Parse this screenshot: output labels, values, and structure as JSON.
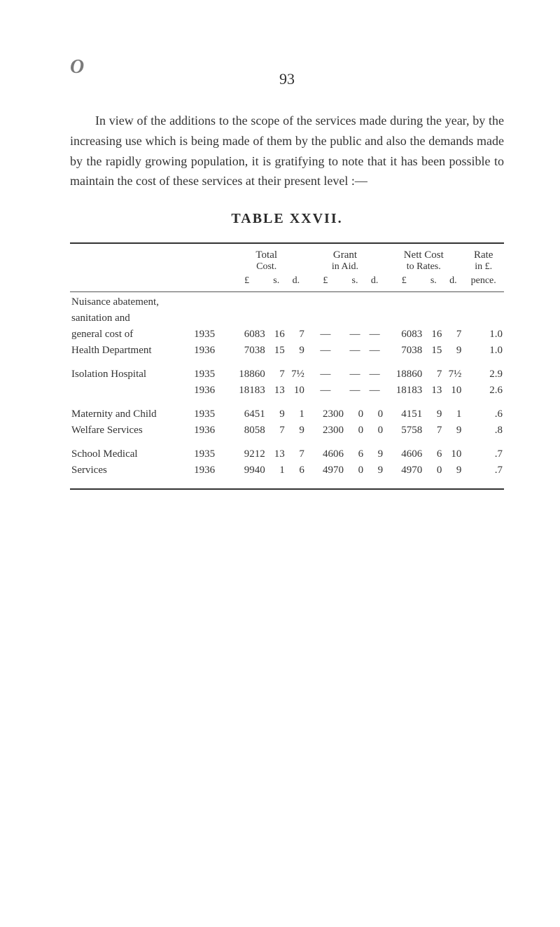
{
  "page_number": "93",
  "binding_mark": "O",
  "paragraph": "In view of the additions to the scope of the services made during the year, by the increasing use which is being made of them by the public and also the demands made by the rapidly growing population, it is gratifying to note that it has been possible to maintain the cost of these services at their present level :—",
  "table_title": "TABLE XXVII.",
  "headers": {
    "total": {
      "label": "Total",
      "sub": "Cost.",
      "p": "£",
      "s": "s.",
      "d": "d."
    },
    "grant": {
      "label": "Grant",
      "sub": "in Aid.",
      "p": "£",
      "s": "s.",
      "d": "d."
    },
    "nett": {
      "label": "Nett Cost",
      "sub": "to Rates.",
      "p": "£",
      "s": "s.",
      "d": "d."
    },
    "rate": {
      "label": "Rate",
      "sub": "in £.",
      "unit": "pence."
    }
  },
  "rows": [
    {
      "label_lines": [
        "Nuisance abatement,",
        "sanitation and",
        "general cost of",
        "Health Department"
      ],
      "data": [
        {
          "year": "1935",
          "tp": "6083",
          "ts": "16",
          "td": "7",
          "gp": "—",
          "gs": "—",
          "gd": "—",
          "np": "6083",
          "ns": "16",
          "nd": "7",
          "rate": "1.0"
        },
        {
          "year": "1936",
          "tp": "7038",
          "ts": "15",
          "td": "9",
          "gp": "—",
          "gs": "—",
          "gd": "—",
          "np": "7038",
          "ns": "15",
          "nd": "9",
          "rate": "1.0"
        }
      ]
    },
    {
      "label_lines": [
        "Isolation Hospital"
      ],
      "data": [
        {
          "year": "1935",
          "tp": "18860",
          "ts": "7",
          "td": "7½",
          "gp": "—",
          "gs": "—",
          "gd": "—",
          "np": "18860",
          "ns": "7",
          "nd": "7½",
          "rate": "2.9"
        },
        {
          "year": "1936",
          "tp": "18183",
          "ts": "13",
          "td": "10",
          "gp": "—",
          "gs": "—",
          "gd": "—",
          "np": "18183",
          "ns": "13",
          "nd": "10",
          "rate": "2.6"
        }
      ]
    },
    {
      "label_lines": [
        "Maternity and Child",
        "Welfare Services"
      ],
      "data": [
        {
          "year": "1935",
          "tp": "6451",
          "ts": "9",
          "td": "1",
          "gp": "2300",
          "gs": "0",
          "gd": "0",
          "np": "4151",
          "ns": "9",
          "nd": "1",
          "rate": ".6"
        },
        {
          "year": "1936",
          "tp": "8058",
          "ts": "7",
          "td": "9",
          "gp": "2300",
          "gs": "0",
          "gd": "0",
          "np": "5758",
          "ns": "7",
          "nd": "9",
          "rate": ".8"
        }
      ]
    },
    {
      "label_lines": [
        "School Medical",
        "Services"
      ],
      "data": [
        {
          "year": "1935",
          "tp": "9212",
          "ts": "13",
          "td": "7",
          "gp": "4606",
          "gs": "6",
          "gd": "9",
          "np": "4606",
          "ns": "6",
          "nd": "10",
          "rate": ".7"
        },
        {
          "year": "1936",
          "tp": "9940",
          "ts": "1",
          "td": "6",
          "gp": "4970",
          "gs": "0",
          "gd": "9",
          "np": "4970",
          "ns": "0",
          "nd": "9",
          "rate": ".7"
        }
      ]
    }
  ],
  "styling": {
    "background_color": "#ffffff",
    "text_color": "#333333",
    "rule_color": "#333333",
    "body_fontsize": 18,
    "table_fontsize": 15,
    "title_fontsize": 20,
    "pagenum_fontsize": 22
  }
}
